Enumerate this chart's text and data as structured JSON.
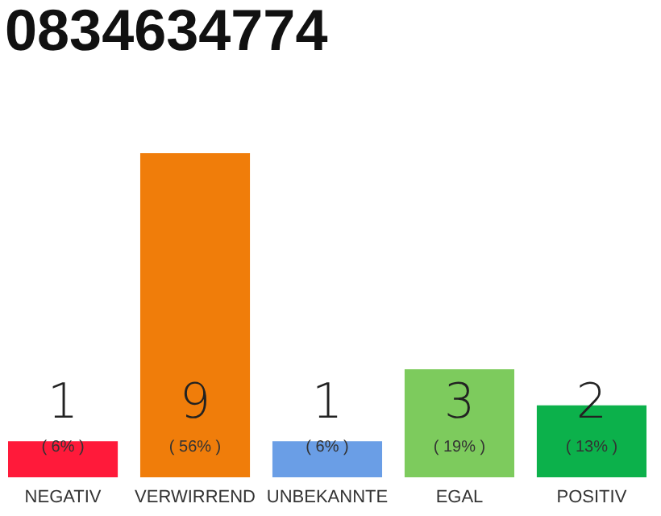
{
  "chart_data": {
    "type": "bar",
    "title": "0834634774",
    "categories": [
      "NEGATIV",
      "VERWIRREND",
      "UNBEKANNTE",
      "EGAL",
      "POSITIV"
    ],
    "values": [
      1,
      9,
      1,
      3,
      2
    ],
    "colors": [
      "#ff1a3a",
      "#f07d0a",
      "#6a9ee6",
      "#7dcb5d",
      "#0cb14b"
    ],
    "ylim": [
      0,
      9
    ],
    "data_labels": true,
    "tick_labels": "x",
    "annotations": [
      "( 6% )",
      "( 56% )",
      "( 6% )",
      "( 19% )",
      "( 13% )"
    ]
  }
}
